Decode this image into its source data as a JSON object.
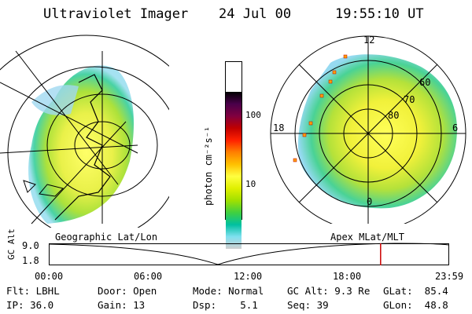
{
  "header": {
    "instrument": "Ultraviolet Imager",
    "date": "24 Jul 00",
    "time": "19:55:10 UT"
  },
  "left_panel": {
    "projection_label": "Geographic Lat/Lon"
  },
  "right_panel": {
    "projection_label": "Apex MLat/MLT",
    "mlt_labels": {
      "top": "12",
      "left": "18",
      "right": "6",
      "bottom": "0"
    },
    "mlat_labels": [
      "60",
      "70",
      "80"
    ]
  },
  "colorbar": {
    "unit_label": "photon cm⁻²s⁻¹",
    "ticks": [
      "100",
      "10"
    ],
    "colors": [
      "#000000",
      "#4a004a",
      "#800040",
      "#c00000",
      "#ff2000",
      "#ff8000",
      "#ffc000",
      "#ffff40",
      "#e0f000",
      "#a0e000",
      "#40d040",
      "#00c0a0",
      "#80e0f0",
      "#d0d0d0"
    ]
  },
  "timeline": {
    "y_axis_title": "GC Alt",
    "y_ticks": [
      "9.0",
      "1.8"
    ],
    "x_ticks": [
      "00:00",
      "06:00",
      "12:00",
      "18:00",
      "23:59"
    ],
    "current_time_marker_hours": 19.92,
    "marker_color": "#cc0000"
  },
  "info": {
    "row1": {
      "flt": "Flt: LBHL",
      "door": "Door: Open",
      "mode": "Mode: Normal",
      "gcalt": "GC Alt: 9.3 Re",
      "glat": "GLat:  85.4"
    },
    "row2": {
      "ip": "IP: 36.0",
      "gain": "Gain: 13",
      "dsp": "Dsp:    5.1",
      "seq": "Seq: 39",
      "glon": "GLon:  48.8"
    }
  }
}
